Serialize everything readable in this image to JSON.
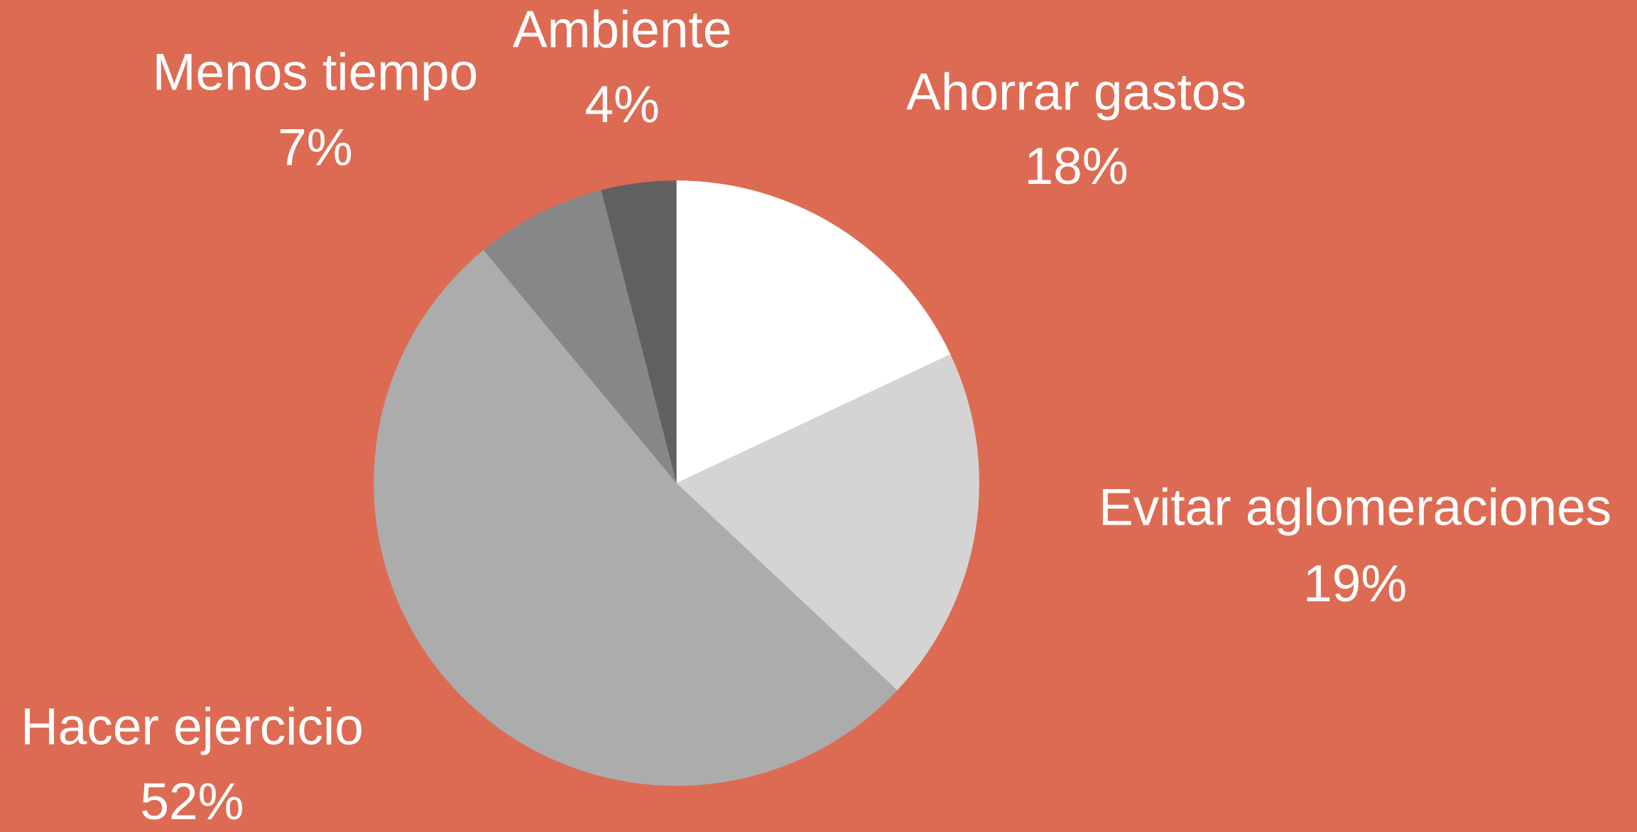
{
  "chart_data": {
    "type": "pie",
    "categories": [
      "Ahorrar gastos",
      "Evitar aglomeraciones",
      "Hacer ejercicio",
      "Menos tiempo",
      "Ambiente"
    ],
    "values": [
      18,
      19,
      52,
      7,
      4
    ],
    "value_labels": [
      "18%",
      "19%",
      "52%",
      "7%",
      "4%"
    ],
    "colors": [
      "#ffffff",
      "#d4d4d4",
      "#acacac",
      "#878787",
      "#606060"
    ]
  }
}
